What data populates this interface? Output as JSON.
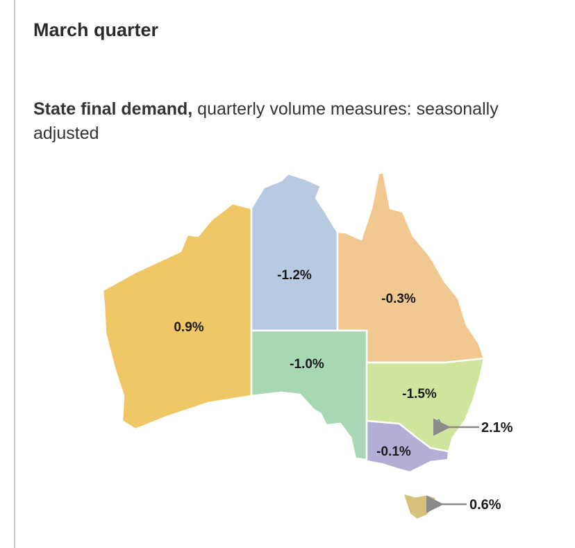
{
  "heading": "March quarter",
  "caption": {
    "bold": "State final demand,",
    "rest": " quarterly volume measures: seasonally adjusted"
  },
  "map": {
    "regions": [
      {
        "name": "wa",
        "value": "0.9%",
        "color": "#efc766"
      },
      {
        "name": "nt",
        "value": "-1.2%",
        "color": "#b8cae2"
      },
      {
        "name": "qld",
        "value": "-0.3%",
        "color": "#f1c990"
      },
      {
        "name": "sa",
        "value": "-1.0%",
        "color": "#a7d8b3"
      },
      {
        "name": "nsw",
        "value": "-1.5%",
        "color": "#cfe59e"
      },
      {
        "name": "vic",
        "value": "-0.1%",
        "color": "#b4add6"
      },
      {
        "name": "act",
        "value": "2.1%",
        "color": "#bfe6ea"
      },
      {
        "name": "tas",
        "value": "0.6%",
        "color": "#d6c17a"
      }
    ],
    "arrow_color": "#8a8a8a"
  }
}
